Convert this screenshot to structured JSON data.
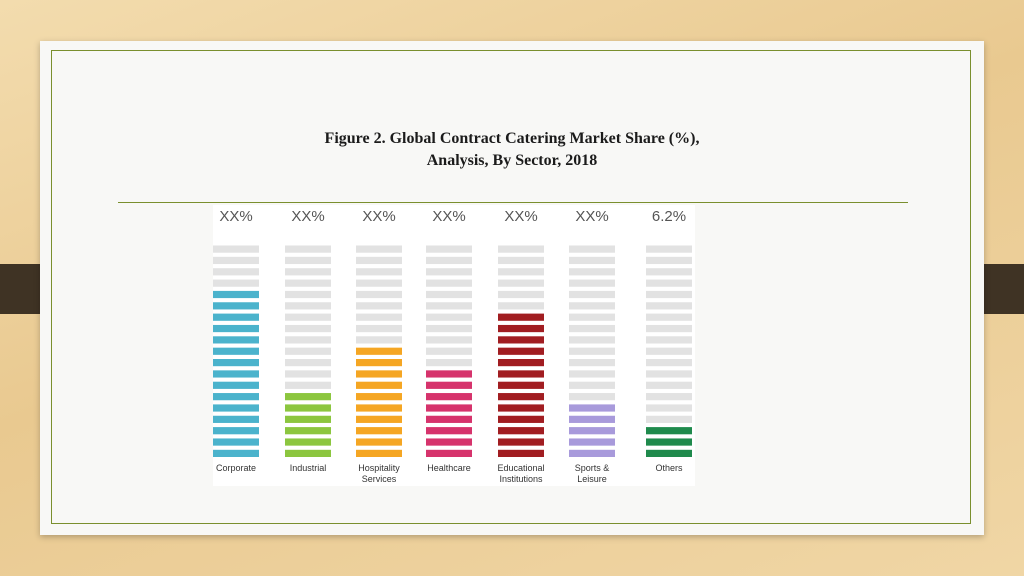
{
  "slide": {
    "title_line1": "Figure 2. Global Contract Catering Market Share (%),",
    "title_line2": "Analysis, By Sector, 2018"
  },
  "colors": {
    "frame": "#7a8f2e",
    "empty_segment": "#e2e2e2"
  },
  "chart_data": {
    "type": "bar",
    "style": "stacked segment columns (pictorial bar)",
    "title": "Figure 2. Global Contract Catering Market Share (%), Analysis, By Sector, 2018",
    "categories": [
      "Corporate",
      "Industrial",
      "Hospitality Services",
      "Healthcare",
      "Educational Institutions",
      "Sports & Leisure",
      "Others"
    ],
    "value_labels": [
      "XX%",
      "XX%",
      "XX%",
      "XX%",
      "XX%",
      "XX%",
      "6.2%"
    ],
    "total_segments": 19,
    "filled_segments": [
      15,
      6,
      10,
      8,
      13,
      5,
      3
    ],
    "colors": [
      "#4bb3cc",
      "#8cc63f",
      "#f5a623",
      "#d6336c",
      "#a11d21",
      "#a89adb",
      "#1f8a4c"
    ],
    "legend": "none",
    "grid": false
  }
}
